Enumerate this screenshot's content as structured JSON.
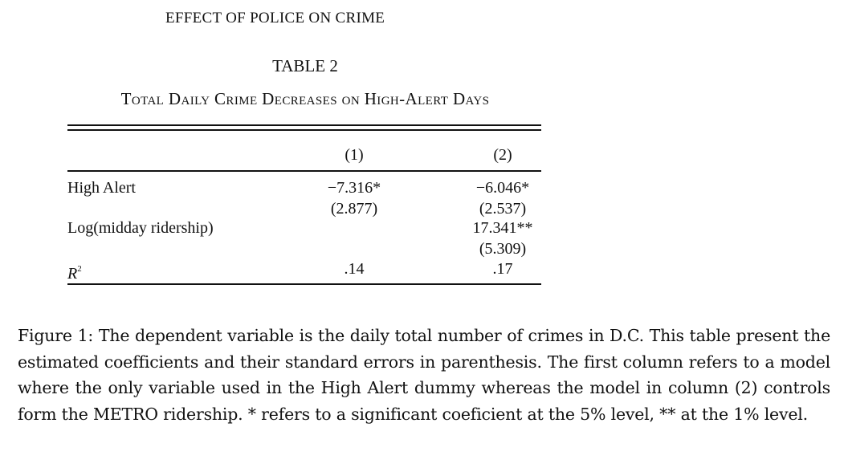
{
  "running_head": "EFFECT OF POLICE ON CRIME",
  "table": {
    "number": "TABLE 2",
    "title": "Total Daily Crime Decreases on High-Alert Days",
    "column_headers": [
      "(1)",
      "(2)"
    ],
    "rows": [
      {
        "label": "High Alert",
        "col1": "−7.316*",
        "col1_se": "(2.877)",
        "col2": "−6.046*",
        "col2_se": "(2.537)"
      },
      {
        "label": "Log(midday ridership)",
        "col1": "",
        "col1_se": "",
        "col2": "17.341**",
        "col2_se": "(5.309)"
      }
    ],
    "r2_label": "R",
    "r2_sup": "2",
    "r2_values": [
      ".14",
      ".17"
    ]
  },
  "caption": "Figure 1: The dependent variable is the daily total number of crimes in D.C. This table present the estimated coefficients and their standard errors in parenthesis. The first column refers to a model where the only variable used in the High Alert dummy whereas the model in column (2) controls form the METRO ridership. * refers to a significant coeficient at the 5% level, ** at the 1% level."
}
